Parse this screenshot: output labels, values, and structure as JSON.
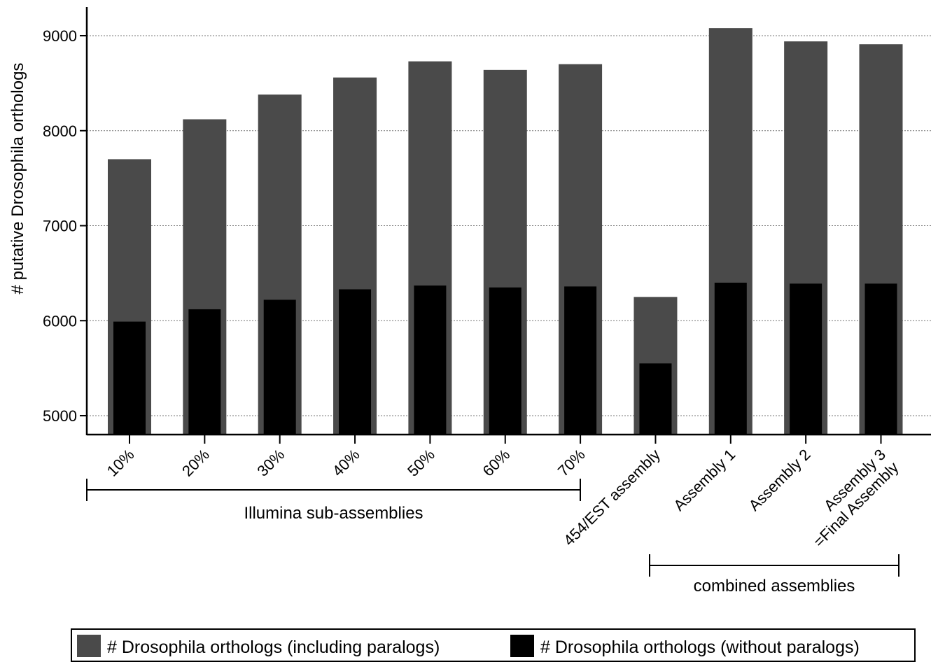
{
  "chart_data": {
    "type": "bar",
    "categories": [
      "10%",
      "20%",
      "30%",
      "40%",
      "50%",
      "60%",
      "70%",
      "454/EST assembly",
      "Assembly 1",
      "Assembly 2",
      "Assembly 3\n=Final Assembly"
    ],
    "series": [
      {
        "name": "# Drosophila orthologs (including paralogs)",
        "values": [
          7700,
          8120,
          8380,
          8560,
          8730,
          8640,
          8700,
          6250,
          9080,
          8940,
          8910
        ]
      },
      {
        "name": "# Drosophila orthologs (without paralogs)",
        "values": [
          5990,
          6120,
          6220,
          6330,
          6370,
          6350,
          6360,
          5550,
          6400,
          6390,
          6390
        ]
      }
    ],
    "title": "",
    "xlabel": "",
    "ylabel": "# putative Drosophila orthologs",
    "ylim": [
      4800,
      9300
    ],
    "yticks": [
      5000,
      6000,
      7000,
      8000,
      9000
    ],
    "grid": true,
    "legend_position": "bottom",
    "groups": [
      {
        "label": "Illumina sub-assemblies",
        "from": 0,
        "to": 6
      },
      {
        "label": "combined assemblies",
        "from": 8,
        "to": 10
      }
    ],
    "colors": {
      "including": "#4a4a4a",
      "without": "#000000"
    }
  }
}
